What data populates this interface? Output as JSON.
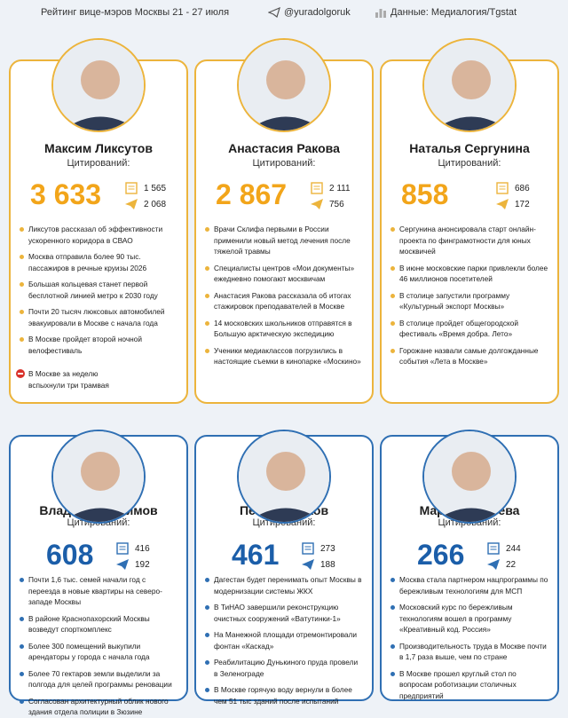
{
  "header": {
    "title": "Рейтинг вице-мэров Москвы 21 - 27 июля",
    "channel": "@yuradolgoruk",
    "source": "Данные: Медиалогия/Tgstat"
  },
  "cards": [
    {
      "name": "Максим Ликсутов",
      "label": "Цитирований:",
      "total": "3 633",
      "media": "1 565",
      "telegram": "2 068",
      "bullets": [
        "Ликсутов рассказал об эффективности ускоренного коридора в СВАО",
        "Москва отправила более 90 тыс. пассажиров в речные круизы 2026",
        "Большая кольцевая станет первой бесплотной линией метро к 2030 году",
        "Почти 20 тысяч люксовых автомобилей эвакуировали в Москве с начала года",
        "В Москве пройдет второй ночной велофестиваль"
      ],
      "negative": "В Москве за неделю вспыхнули три трамвая"
    },
    {
      "name": "Анастасия Ракова",
      "label": "Цитирований:",
      "total": "2 867",
      "media": "2 111",
      "telegram": "756",
      "bullets": [
        "Врачи Склифа первыми в России применили новый метод лечения после тяжелой травмы",
        "Специалисты центров «Мои документы» ежедневно помогают москвичам",
        "Анастасия Ракова рассказала об итогах стажировок преподавателей в Москве",
        "14 московских школьников отправятся в Большую арктическую экспедицию",
        "Ученики медиаклассов погрузились в настоящие съемки в кинопарке «Москино»"
      ]
    },
    {
      "name": "Наталья Сергунина",
      "label": "Цитирований:",
      "total": "858",
      "media": "686",
      "telegram": "172",
      "bullets": [
        "Сергунина анонсировала старт онлайн-проекта по финграмотности для юных москвичей",
        "В июне московские парки привлекли более 46 миллионов посетителей",
        "В столице запустили программу «Культурный экспорт Москвы»",
        "В столице пройдет общегородской фестиваль «Время добра. Лето»",
        "Горожане назвали самые долгожданные события «Лета в Москве»"
      ]
    },
    {
      "name": "Владимир Ефимов",
      "label": "Цитирований:",
      "total": "608",
      "media": "416",
      "telegram": "192",
      "bullets": [
        "Почти 1,6 тыс. семей начали год с переезда в новые квартиры на северо-западе Москвы",
        "В районе Краснопахорский Москвы возведут спорткомплекс",
        "Более 300 помещений выкупили арендаторы у города с начала года",
        "Более 70 гектаров земли выделили за полгода для целей программы реновации",
        "Согласован архитектурный облик нового здания отдела полиции в Зюзине"
      ]
    },
    {
      "name": "Петр Бирюков",
      "label": "Цитирований:",
      "total": "461",
      "media": "273",
      "telegram": "188",
      "bullets": [
        "Дагестан будет перенимать опыт Москвы в модернизации системы ЖКХ",
        "В ТиНАО завершили реконструкцию очистных сооружений «Ватутинки-1»",
        "На Манежной площади отремонтировали фонтан «Каскад»",
        "Реабилитацию Дунькиного пруда провели в Зеленограде",
        "В Москве горячую воду вернули в более чем 51 тыс зданий после испытаний"
      ]
    },
    {
      "name": "Мария Багреева",
      "label": "Цитирований:",
      "total": "266",
      "media": "244",
      "telegram": "22",
      "bullets": [
        "Москва стала партнером нацпрограммы по бережливым технологиям для МСП",
        "Московский курс по бережливым технологиям вошел в программу «Креативный код. Россия»",
        "Производительность труда в Москве почти в 1,7 раза выше, чем по стране",
        "В Москве прошел круглый стол по вопросам роботизации столичных предприятий"
      ]
    }
  ]
}
